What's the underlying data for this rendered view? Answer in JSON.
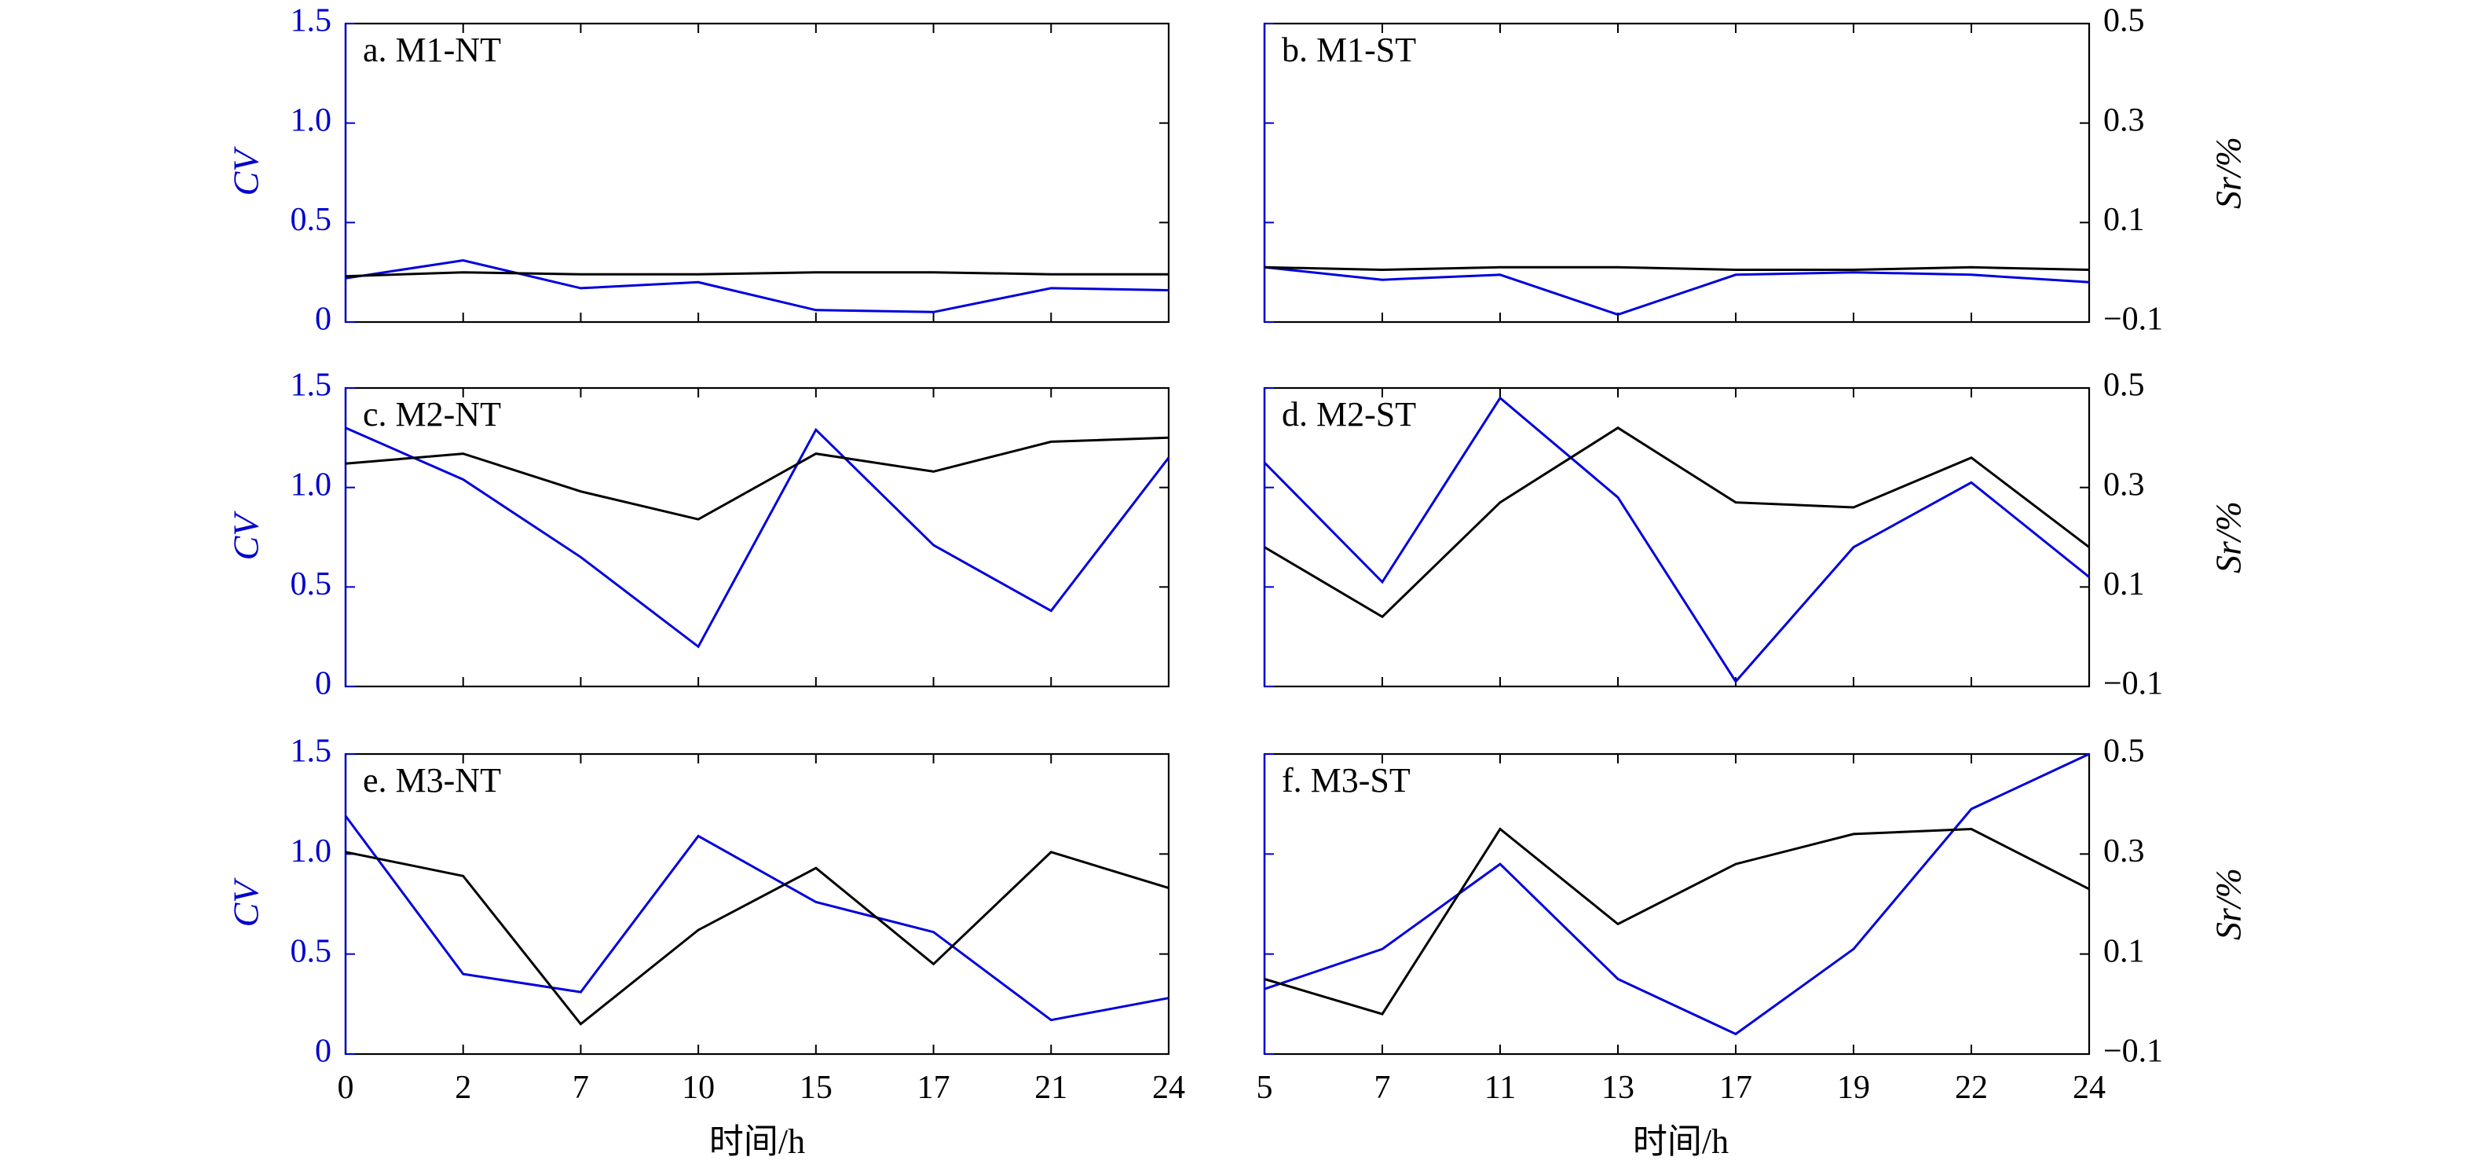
{
  "figure": {
    "xlabel_left": "时间/h",
    "xlabel_right": "时间/h",
    "left_axis_label": "CV",
    "right_axis_label": "Sr/%",
    "left_axis_color": "#0000cc",
    "right_axis_color": "#000000",
    "cv_line_color": "#0000dd",
    "sr_line_color": "#000000"
  },
  "chart_data": [
    {
      "type": "line",
      "panel": "a",
      "title": "a. M1-NT",
      "categories": [
        "0",
        "2",
        "7",
        "10",
        "15",
        "17",
        "21",
        "24"
      ],
      "left_yticks": [
        "0",
        "0.5",
        "1.0",
        "1.5"
      ],
      "ylim_left": [
        0,
        1.5
      ],
      "series": [
        {
          "axis": "left",
          "values": [
            0.22,
            0.31,
            0.17,
            0.2,
            0.06,
            0.05,
            0.17,
            0.16
          ]
        },
        {
          "axis": "left",
          "values": [
            0.23,
            0.25,
            0.24,
            0.24,
            0.25,
            0.25,
            0.24,
            0.24
          ]
        }
      ]
    },
    {
      "type": "line",
      "panel": "b",
      "title": "b. M1-ST",
      "categories": [
        "5",
        "7",
        "11",
        "13",
        "17",
        "19",
        "22",
        "24"
      ],
      "right_yticks": [
        "0.5",
        "0.3",
        "0.1",
        "−0.1"
      ],
      "ylim_right": [
        -0.1,
        0.5
      ],
      "series": [
        {
          "axis": "right",
          "values": [
            0.01,
            -0.015,
            -0.005,
            -0.085,
            -0.005,
            0.0,
            -0.005,
            -0.02
          ]
        },
        {
          "axis": "right",
          "values": [
            0.01,
            0.005,
            0.01,
            0.01,
            0.005,
            0.005,
            0.01,
            0.005
          ]
        }
      ]
    },
    {
      "type": "line",
      "panel": "c",
      "title": "c. M2-NT",
      "categories": [
        "0",
        "2",
        "7",
        "10",
        "15",
        "17",
        "21",
        "24"
      ],
      "left_yticks": [
        "0",
        "0.5",
        "1.0",
        "1.5"
      ],
      "ylim_left": [
        0,
        1.5
      ],
      "series": [
        {
          "axis": "left",
          "values": [
            1.3,
            1.04,
            0.65,
            0.2,
            1.29,
            0.71,
            0.38,
            1.15
          ]
        },
        {
          "axis": "left",
          "values": [
            1.12,
            1.17,
            0.98,
            0.84,
            1.17,
            1.08,
            1.23,
            1.25
          ]
        }
      ]
    },
    {
      "type": "line",
      "panel": "d",
      "title": "d. M2-ST",
      "categories": [
        "5",
        "7",
        "11",
        "13",
        "17",
        "19",
        "22",
        "24"
      ],
      "right_yticks": [
        "0.5",
        "0.3",
        "0.1",
        "−0.1"
      ],
      "ylim_right": [
        -0.1,
        0.5
      ],
      "series": [
        {
          "axis": "right",
          "values": [
            0.35,
            0.11,
            0.48,
            0.28,
            -0.09,
            0.18,
            0.31,
            0.12
          ]
        },
        {
          "axis": "right",
          "values": [
            0.18,
            0.04,
            0.27,
            0.42,
            0.27,
            0.26,
            0.36,
            0.18
          ]
        }
      ]
    },
    {
      "type": "line",
      "panel": "e",
      "title": "e. M3-NT",
      "categories": [
        "0",
        "2",
        "7",
        "10",
        "15",
        "17",
        "21",
        "24"
      ],
      "left_yticks": [
        "0",
        "0.5",
        "1.0",
        "1.5"
      ],
      "ylim_left": [
        0,
        1.5
      ],
      "series": [
        {
          "axis": "left",
          "values": [
            1.19,
            0.4,
            0.31,
            1.09,
            0.76,
            0.61,
            0.17,
            0.28
          ]
        },
        {
          "axis": "left",
          "values": [
            1.01,
            0.89,
            0.15,
            0.62,
            0.93,
            0.45,
            1.01,
            0.83
          ]
        }
      ]
    },
    {
      "type": "line",
      "panel": "f",
      "title": "f. M3-ST",
      "categories": [
        "5",
        "7",
        "11",
        "13",
        "17",
        "19",
        "22",
        "24"
      ],
      "right_yticks": [
        "0.5",
        "0.3",
        "0.1",
        "−0.1"
      ],
      "ylim_right": [
        -0.1,
        0.5
      ],
      "series": [
        {
          "axis": "right",
          "values": [
            0.03,
            0.11,
            0.28,
            0.05,
            -0.06,
            0.11,
            0.39,
            0.5
          ]
        },
        {
          "axis": "right",
          "values": [
            0.05,
            -0.02,
            0.35,
            0.16,
            0.28,
            0.34,
            0.35,
            0.23
          ]
        }
      ]
    }
  ]
}
